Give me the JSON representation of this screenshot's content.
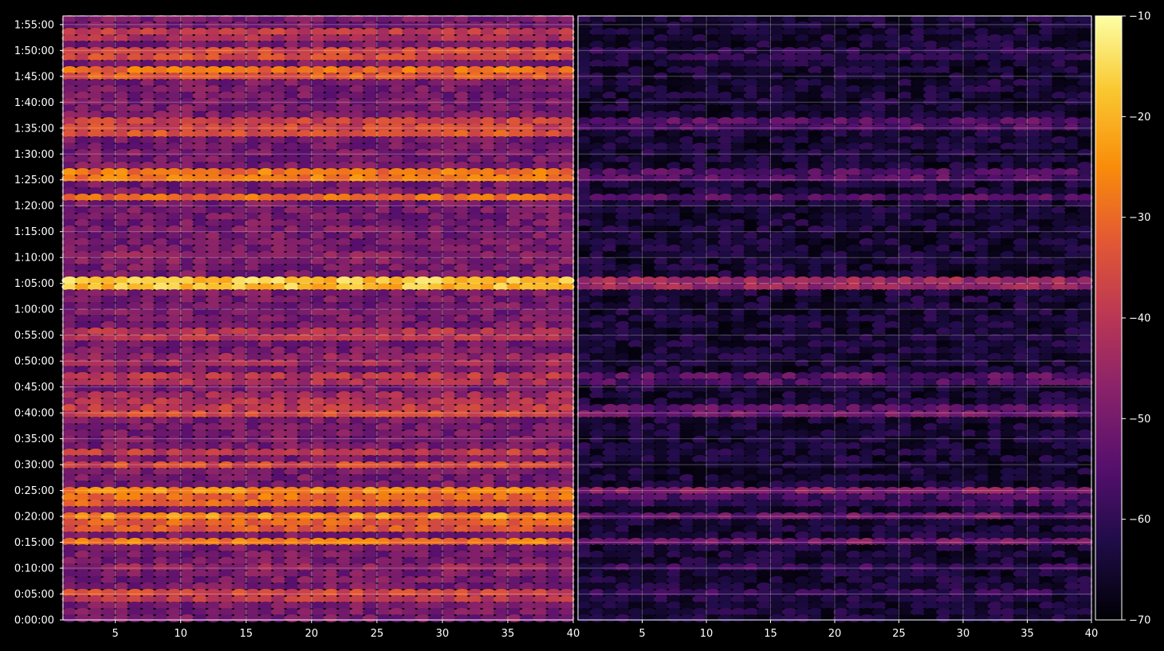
{
  "chart_data": {
    "type": "heatmap",
    "title": "",
    "xlabel": "",
    "ylabel": "",
    "background": "#000000",
    "grid": true,
    "colormap": "inferno",
    "colorbar": {
      "vmin": -70,
      "vmax": -10,
      "ticks": [
        -70,
        -60,
        -50,
        -40,
        -30,
        -20,
        -10
      ],
      "tick_labels": [
        "−70",
        "−60",
        "−50",
        "−40",
        "−30",
        "−20",
        "−10"
      ],
      "placement": "right"
    },
    "y_axis": {
      "ylim_seconds": [
        0,
        7000
      ],
      "tick_seconds": [
        0,
        300,
        600,
        900,
        1200,
        1500,
        1800,
        2100,
        2400,
        2700,
        3000,
        3300,
        3600,
        3900,
        4200,
        4500,
        4800,
        5100,
        5400,
        5700,
        6000,
        6300,
        6600,
        6900
      ],
      "tick_labels": [
        "0:00:00",
        "0:05:00",
        "0:10:00",
        "0:15:00",
        "0:20:00",
        "0:25:00",
        "0:30:00",
        "0:35:00",
        "0:40:00",
        "0:45:00",
        "0:50:00",
        "0:55:00",
        "1:00:00",
        "1:05:00",
        "1:10:00",
        "1:15:00",
        "1:20:00",
        "1:25:00",
        "1:30:00",
        "1:35:00",
        "1:40:00",
        "1:45:00",
        "1:50:00",
        "1:55:00"
      ]
    },
    "panels": [
      {
        "name": "",
        "xlim": [
          1,
          40
        ],
        "x_ticks": [
          5,
          10,
          15,
          20,
          25,
          30,
          35,
          40
        ],
        "x_tick_labels": [
          "5",
          "10",
          "15",
          "20",
          "25",
          "30",
          "35",
          "40"
        ],
        "base_level": -50,
        "bands": [
          {
            "t": 300,
            "level": -35
          },
          {
            "t": 600,
            "level": -45
          },
          {
            "t": 900,
            "level": -28
          },
          {
            "t": 1100,
            "level": -30
          },
          {
            "t": 1200,
            "level": -25
          },
          {
            "t": 1400,
            "level": -28
          },
          {
            "t": 1500,
            "level": -26
          },
          {
            "t": 1800,
            "level": -35
          },
          {
            "t": 1950,
            "level": -38
          },
          {
            "t": 2400,
            "level": -35
          },
          {
            "t": 2550,
            "level": -40
          },
          {
            "t": 2800,
            "level": -38
          },
          {
            "t": 3000,
            "level": -42
          },
          {
            "t": 3300,
            "level": -38
          },
          {
            "t": 3900,
            "level": -15
          },
          {
            "t": 4200,
            "level": -45
          },
          {
            "t": 4900,
            "level": -30
          },
          {
            "t": 5150,
            "level": -25
          },
          {
            "t": 5650,
            "level": -32
          },
          {
            "t": 5750,
            "level": -35
          },
          {
            "t": 6350,
            "level": -28
          },
          {
            "t": 6550,
            "level": -33
          },
          {
            "t": 6800,
            "level": -38
          }
        ]
      },
      {
        "name": "",
        "xlim": [
          0,
          40
        ],
        "x_ticks": [
          5,
          10,
          15,
          20,
          25,
          30,
          35,
          40
        ],
        "x_tick_labels": [
          "5",
          "10",
          "15",
          "20",
          "25",
          "30",
          "35",
          "40"
        ],
        "base_level": -64,
        "bands": [
          {
            "t": 300,
            "level": -58
          },
          {
            "t": 600,
            "level": -58
          },
          {
            "t": 900,
            "level": -50
          },
          {
            "t": 1200,
            "level": -52
          },
          {
            "t": 1400,
            "level": -55
          },
          {
            "t": 1500,
            "level": -48
          },
          {
            "t": 2400,
            "level": -50
          },
          {
            "t": 2800,
            "level": -52
          },
          {
            "t": 3900,
            "level": -42
          },
          {
            "t": 4900,
            "level": -55
          },
          {
            "t": 5150,
            "level": -52
          },
          {
            "t": 5750,
            "level": -52
          },
          {
            "t": 6550,
            "level": -58
          }
        ]
      }
    ]
  }
}
